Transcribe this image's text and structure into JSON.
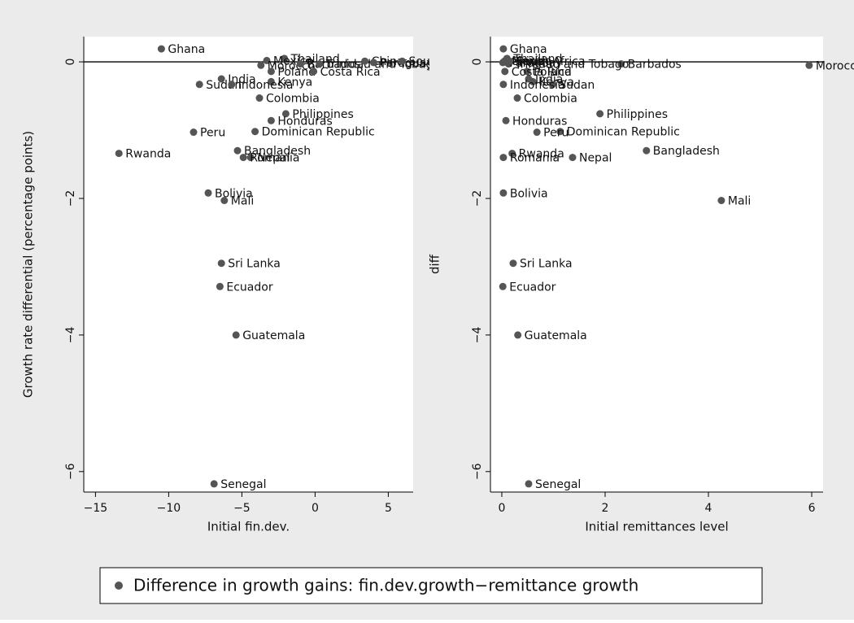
{
  "chart_data": [
    {
      "type": "scatter",
      "xlabel": "Initial fin.dev.",
      "ylabel": "Growth rate differential (percentage points)",
      "xlim": [
        -15.8,
        6.7
      ],
      "ylim": [
        -6.3,
        0.37
      ],
      "xticks": [
        {
          "value": -15,
          "label": "−15"
        },
        {
          "value": -10,
          "label": "−10"
        },
        {
          "value": -5,
          "label": "−5"
        },
        0,
        5
      ],
      "yticks": [
        {
          "value": -6,
          "label": "−6"
        },
        {
          "value": -4,
          "label": "−4"
        },
        {
          "value": -2,
          "label": "−2"
        },
        0
      ],
      "yline": 0,
      "labels": [
        "Ghana",
        "Thailand",
        "Mexico",
        "Morocco",
        "Barbados",
        "Trinidad and Tobago",
        "China",
        "Paraguay",
        "South Africa",
        "Poland",
        "Costa Rica",
        "India",
        "Kenya",
        "Sudan",
        "Indonesia",
        "Colombia",
        "Philippines",
        "Honduras",
        "Dominican Republic",
        "Peru",
        "Bangladesh",
        "Rwanda",
        "Nepal",
        "Romania",
        "Bolivia",
        "Mali",
        "Sri Lanka",
        "Ecuador",
        "Guatemala",
        "Senegal"
      ],
      "x": [
        -10.5,
        -2.1,
        -3.3,
        -3.7,
        -1.0,
        0.3,
        3.4,
        4.0,
        5.95,
        -3.0,
        -0.1,
        -6.4,
        -3.0,
        -7.9,
        -5.7,
        -3.8,
        -2.0,
        -3.0,
        -4.1,
        -8.3,
        -5.3,
        -13.4,
        -4.4,
        -4.9,
        -7.3,
        -6.2,
        -6.4,
        -6.5,
        -5.4,
        -6.9
      ],
      "values": [
        0.19,
        0.05,
        0.02,
        -0.05,
        -0.03,
        -0.03,
        0.01,
        -0.01,
        0.01,
        -0.14,
        -0.14,
        -0.25,
        -0.29,
        -0.33,
        -0.33,
        -0.53,
        -0.76,
        -0.86,
        -1.02,
        -1.03,
        -1.3,
        -1.34,
        -1.4,
        -1.4,
        -1.92,
        -2.03,
        -2.95,
        -3.29,
        -4.0,
        -6.18
      ]
    },
    {
      "type": "scatter",
      "xlabel": "Initial remittances level",
      "ylabel": "diff",
      "xlim": [
        -0.22,
        6.22
      ],
      "ylim": [
        -6.3,
        0.37
      ],
      "xticks": [
        0,
        2,
        4,
        6
      ],
      "yticks": [
        {
          "value": -6,
          "label": "−6"
        },
        {
          "value": -4,
          "label": "−4"
        },
        {
          "value": -2,
          "label": "−2"
        },
        0
      ],
      "yline": 0,
      "labels": [
        "Ghana",
        "Thailand",
        "Mexico",
        "Morocco",
        "Barbados",
        "Trinidad and Tobago",
        "China",
        "Paraguay",
        "South Africa",
        "Poland",
        "Costa Rica",
        "India",
        "Kenya",
        "Sudan",
        "Indonesia",
        "Colombia",
        "Philippines",
        "Honduras",
        "Dominican Republic",
        "Peru",
        "Bangladesh",
        "Rwanda",
        "Nepal",
        "Romania",
        "Bolivia",
        "Mali",
        "Sri Lanka",
        "Ecuador",
        "Guatemala",
        "Senegal"
      ],
      "x": [
        0.03,
        0.1,
        0.07,
        5.95,
        2.31,
        0.13,
        0.05,
        0.02,
        0.15,
        0.49,
        0.06,
        0.52,
        0.6,
        0.98,
        0.03,
        0.3,
        1.9,
        0.08,
        1.13,
        0.68,
        2.8,
        0.2,
        1.37,
        0.03,
        0.03,
        4.25,
        0.22,
        0.02,
        0.31,
        0.52
      ],
      "values": [
        0.19,
        0.05,
        0.02,
        -0.05,
        -0.03,
        -0.03,
        0.01,
        -0.01,
        0.01,
        -0.14,
        -0.14,
        -0.25,
        -0.29,
        -0.33,
        -0.33,
        -0.53,
        -0.76,
        -0.86,
        -1.02,
        -1.03,
        -1.3,
        -1.34,
        -1.4,
        -1.4,
        -1.92,
        -2.03,
        -2.95,
        -3.29,
        -4.0,
        -6.18
      ]
    }
  ],
  "legend": {
    "name": "Difference in growth gains: fin.dev.growth−remittance growth",
    "color": "#555555"
  }
}
